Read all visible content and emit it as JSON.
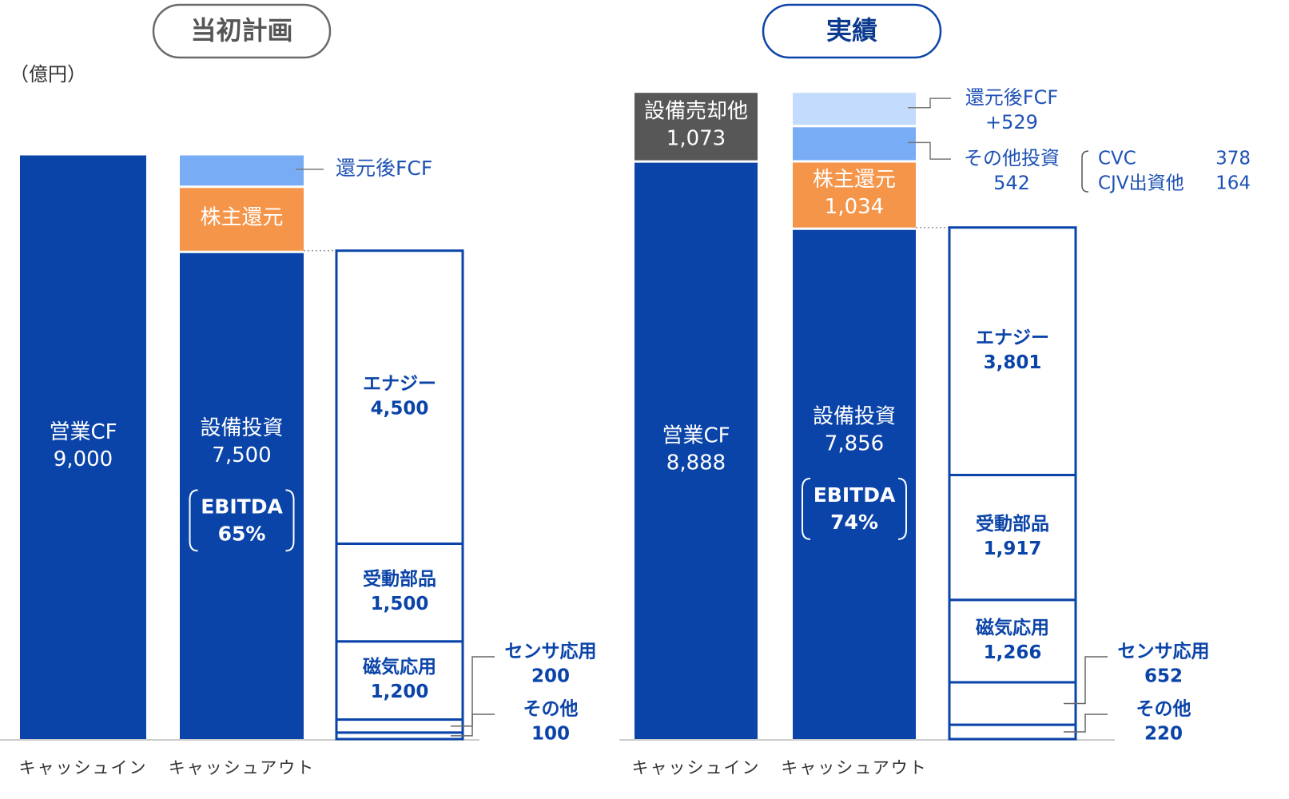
{
  "unit_label": "（億円）",
  "chart_data": [
    {
      "type": "cash_flow_stack",
      "title": "当初計画",
      "cash_in": {
        "label": "キャッシュイン",
        "segments": [
          {
            "name": "営業CF",
            "value": 9000,
            "value_label": "9,000",
            "color": "#0b44a9"
          }
        ]
      },
      "cash_out": {
        "label": "キャッシュアウト",
        "segments": [
          {
            "name": "設備投資",
            "value": 7500,
            "value_label": "7,500",
            "color": "#0b44a9",
            "note": {
              "label": "EBITDA",
              "value": 65,
              "value_label": "65%"
            }
          },
          {
            "name": "株主還元",
            "value": 1000,
            "color": "#f5954a",
            "show_value": false
          },
          {
            "name": "還元後FCF",
            "value": 500,
            "color": "#78adf5",
            "show_value": false
          }
        ]
      },
      "breakdown": {
        "color": "#0b44a9",
        "segments": [
          {
            "name": "その他",
            "value": 100
          },
          {
            "name": "センサ応用",
            "value": 200
          },
          {
            "name": "磁気応用",
            "value": 1200,
            "value_label": "1,200"
          },
          {
            "name": "受動部品",
            "value": 1500,
            "value_label": "1,500"
          },
          {
            "name": "エナジー",
            "value": 4500,
            "value_label": "4,500"
          }
        ]
      }
    },
    {
      "type": "cash_flow_stack",
      "title": "実績",
      "cash_in": {
        "label": "キャッシュイン",
        "segments": [
          {
            "name": "営業CF",
            "value": 8888,
            "value_label": "8,888",
            "color": "#0b44a9"
          },
          {
            "name": "設備売却他",
            "value": 1073,
            "value_label": "1,073",
            "color": "#575757"
          }
        ]
      },
      "cash_out": {
        "label": "キャッシュアウト",
        "segments": [
          {
            "name": "設備投資",
            "value": 7856,
            "value_label": "7,856",
            "color": "#0b44a9",
            "note": {
              "label": "EBITDA",
              "value": 74,
              "value_label": "74%"
            }
          },
          {
            "name": "株主還元",
            "value": 1034,
            "value_label": "1,034",
            "color": "#f5954a"
          },
          {
            "name": "その他投資",
            "value": 542,
            "color": "#78adf5",
            "parts": [
              {
                "name": "CVC",
                "value": 378
              },
              {
                "name": "CJV出資他",
                "value": 164
              }
            ]
          },
          {
            "name": "還元後FCF",
            "value": 529,
            "value_label": "+529",
            "color": "#c3dbfc"
          }
        ]
      },
      "breakdown": {
        "color": "#0b44a9",
        "segments": [
          {
            "name": "その他",
            "value": 220
          },
          {
            "name": "センサ応用",
            "value": 652
          },
          {
            "name": "磁気応用",
            "value": 1266,
            "value_label": "1,266"
          },
          {
            "name": "受動部品",
            "value": 1917,
            "value_label": "1,917"
          },
          {
            "name": "エナジー",
            "value": 3801,
            "value_label": "3,801"
          }
        ]
      }
    }
  ]
}
